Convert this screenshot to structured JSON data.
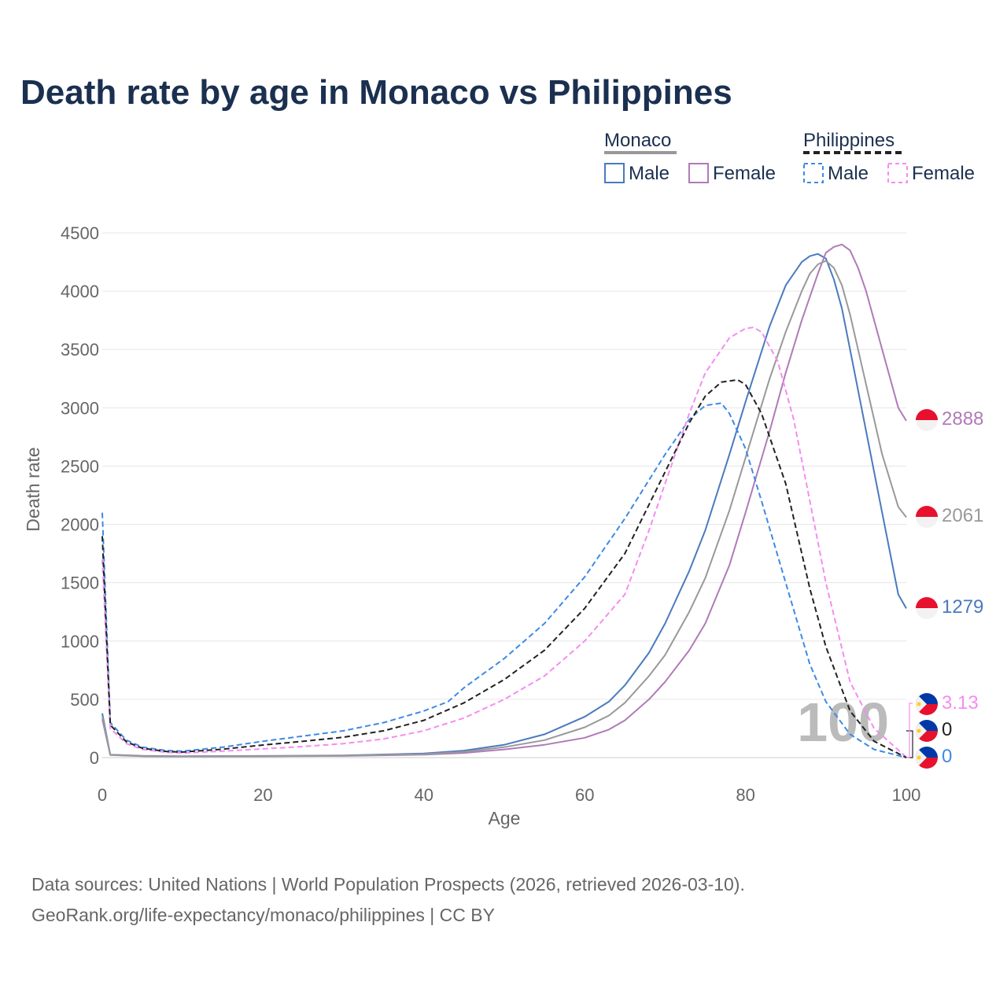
{
  "colors": {
    "monaco_male": "#4a7abf",
    "monaco_female": "#b07ab8",
    "monaco_total": "#999999",
    "philippines_male": "#3d8ae6",
    "philippines_female": "#f58cf0",
    "philippines_total": "#222222",
    "title": "#1b3050",
    "grid": "#e6e6e6",
    "flag_red": "#e8112d",
    "flag_blue": "#0038a8",
    "flag_yellow": "#fcd116"
  },
  "legend": {
    "group1": "Monaco",
    "group2": "Philippines",
    "male": "Male",
    "female": "Female"
  },
  "end_labels": {
    "monaco_female": "2888",
    "monaco_total": "2061",
    "monaco_male": "1279",
    "philippines_female": "3.13",
    "philippines_total": "0",
    "philippines_male": "0"
  },
  "year_watermark": "100",
  "source": {
    "line1": "Data sources: United Nations | World Population Prospects (2026, retrieved 2026-03-10).",
    "line2": "GeoRank.org/life-expectancy/monaco/philippines | CC BY"
  },
  "chart_data": {
    "type": "line",
    "title": "Death rate by age in Monaco vs Philippines",
    "xlabel": "Age",
    "ylabel": "Death rate",
    "xlim": [
      0,
      100
    ],
    "ylim": [
      0,
      4500
    ],
    "xticks": [
      0,
      20,
      40,
      60,
      80,
      100
    ],
    "yticks": [
      0,
      500,
      1000,
      1500,
      2000,
      2500,
      3000,
      3500,
      4000,
      4500
    ],
    "series": [
      {
        "name": "Monaco Male",
        "key": "monaco_male",
        "dashed": false,
        "points": [
          [
            0,
            380
          ],
          [
            1,
            25
          ],
          [
            5,
            15
          ],
          [
            10,
            12
          ],
          [
            20,
            14
          ],
          [
            30,
            18
          ],
          [
            40,
            35
          ],
          [
            45,
            60
          ],
          [
            50,
            110
          ],
          [
            55,
            200
          ],
          [
            60,
            350
          ],
          [
            63,
            480
          ],
          [
            65,
            620
          ],
          [
            68,
            900
          ],
          [
            70,
            1150
          ],
          [
            73,
            1600
          ],
          [
            75,
            1950
          ],
          [
            78,
            2600
          ],
          [
            80,
            3050
          ],
          [
            83,
            3700
          ],
          [
            85,
            4050
          ],
          [
            87,
            4250
          ],
          [
            88,
            4300
          ],
          [
            89,
            4320
          ],
          [
            90,
            4280
          ],
          [
            91,
            4100
          ],
          [
            92,
            3850
          ],
          [
            93,
            3500
          ],
          [
            95,
            2800
          ],
          [
            97,
            2100
          ],
          [
            99,
            1400
          ],
          [
            100,
            1279
          ]
        ]
      },
      {
        "name": "Monaco Female",
        "key": "monaco_female",
        "dashed": false,
        "points": [
          [
            0,
            330
          ],
          [
            1,
            22
          ],
          [
            5,
            12
          ],
          [
            10,
            10
          ],
          [
            20,
            11
          ],
          [
            30,
            14
          ],
          [
            40,
            25
          ],
          [
            45,
            40
          ],
          [
            50,
            70
          ],
          [
            55,
            110
          ],
          [
            60,
            170
          ],
          [
            63,
            240
          ],
          [
            65,
            320
          ],
          [
            68,
            500
          ],
          [
            70,
            650
          ],
          [
            73,
            920
          ],
          [
            75,
            1150
          ],
          [
            78,
            1650
          ],
          [
            80,
            2100
          ],
          [
            83,
            2800
          ],
          [
            85,
            3300
          ],
          [
            87,
            3750
          ],
          [
            89,
            4150
          ],
          [
            90,
            4330
          ],
          [
            91,
            4380
          ],
          [
            92,
            4400
          ],
          [
            93,
            4350
          ],
          [
            94,
            4200
          ],
          [
            95,
            4000
          ],
          [
            97,
            3500
          ],
          [
            99,
            3000
          ],
          [
            100,
            2888
          ]
        ]
      },
      {
        "name": "Monaco Total",
        "key": "monaco_total",
        "dashed": false,
        "points": [
          [
            0,
            355
          ],
          [
            1,
            24
          ],
          [
            5,
            13
          ],
          [
            10,
            11
          ],
          [
            20,
            12
          ],
          [
            30,
            16
          ],
          [
            40,
            30
          ],
          [
            45,
            50
          ],
          [
            50,
            90
          ],
          [
            55,
            150
          ],
          [
            60,
            260
          ],
          [
            63,
            360
          ],
          [
            65,
            470
          ],
          [
            68,
            700
          ],
          [
            70,
            880
          ],
          [
            73,
            1250
          ],
          [
            75,
            1540
          ],
          [
            78,
            2120
          ],
          [
            80,
            2570
          ],
          [
            83,
            3250
          ],
          [
            85,
            3650
          ],
          [
            87,
            4000
          ],
          [
            88,
            4150
          ],
          [
            89,
            4230
          ],
          [
            90,
            4260
          ],
          [
            91,
            4200
          ],
          [
            92,
            4050
          ],
          [
            93,
            3800
          ],
          [
            95,
            3200
          ],
          [
            97,
            2600
          ],
          [
            99,
            2150
          ],
          [
            100,
            2061
          ]
        ]
      },
      {
        "name": "Philippines Male",
        "key": "philippines_male",
        "dashed": true,
        "points": [
          [
            0,
            2100
          ],
          [
            1,
            300
          ],
          [
            3,
            150
          ],
          [
            5,
            90
          ],
          [
            8,
            60
          ],
          [
            10,
            55
          ],
          [
            15,
            90
          ],
          [
            20,
            140
          ],
          [
            25,
            185
          ],
          [
            30,
            230
          ],
          [
            35,
            300
          ],
          [
            40,
            400
          ],
          [
            43,
            480
          ],
          [
            45,
            600
          ],
          [
            50,
            850
          ],
          [
            55,
            1150
          ],
          [
            60,
            1550
          ],
          [
            65,
            2050
          ],
          [
            70,
            2600
          ],
          [
            73,
            2900
          ],
          [
            75,
            3020
          ],
          [
            77,
            3040
          ],
          [
            78,
            2950
          ],
          [
            80,
            2650
          ],
          [
            82,
            2200
          ],
          [
            85,
            1500
          ],
          [
            88,
            800
          ],
          [
            90,
            480
          ],
          [
            93,
            200
          ],
          [
            96,
            70
          ],
          [
            100,
            0
          ]
        ]
      },
      {
        "name": "Philippines Female",
        "key": "philippines_female",
        "dashed": true,
        "points": [
          [
            0,
            1700
          ],
          [
            1,
            250
          ],
          [
            3,
            120
          ],
          [
            5,
            70
          ],
          [
            8,
            45
          ],
          [
            10,
            40
          ],
          [
            15,
            55
          ],
          [
            20,
            75
          ],
          [
            25,
            95
          ],
          [
            30,
            120
          ],
          [
            35,
            160
          ],
          [
            40,
            230
          ],
          [
            45,
            340
          ],
          [
            50,
            500
          ],
          [
            55,
            700
          ],
          [
            60,
            1000
          ],
          [
            65,
            1400
          ],
          [
            68,
            1950
          ],
          [
            70,
            2350
          ],
          [
            73,
            2950
          ],
          [
            75,
            3300
          ],
          [
            78,
            3600
          ],
          [
            80,
            3680
          ],
          [
            81,
            3690
          ],
          [
            82,
            3650
          ],
          [
            84,
            3400
          ],
          [
            86,
            2900
          ],
          [
            88,
            2200
          ],
          [
            90,
            1500
          ],
          [
            93,
            650
          ],
          [
            96,
            250
          ],
          [
            100,
            3.13
          ]
        ]
      },
      {
        "name": "Philippines Total",
        "key": "philippines_total",
        "dashed": true,
        "points": [
          [
            0,
            1900
          ],
          [
            1,
            280
          ],
          [
            3,
            135
          ],
          [
            5,
            80
          ],
          [
            8,
            52
          ],
          [
            10,
            48
          ],
          [
            15,
            72
          ],
          [
            20,
            108
          ],
          [
            25,
            140
          ],
          [
            30,
            175
          ],
          [
            35,
            230
          ],
          [
            40,
            320
          ],
          [
            45,
            470
          ],
          [
            50,
            670
          ],
          [
            55,
            920
          ],
          [
            60,
            1280
          ],
          [
            65,
            1750
          ],
          [
            70,
            2450
          ],
          [
            73,
            2870
          ],
          [
            75,
            3100
          ],
          [
            77,
            3220
          ],
          [
            79,
            3240
          ],
          [
            80,
            3200
          ],
          [
            82,
            2950
          ],
          [
            85,
            2350
          ],
          [
            88,
            1450
          ],
          [
            90,
            950
          ],
          [
            93,
            400
          ],
          [
            96,
            140
          ],
          [
            100,
            0
          ]
        ]
      }
    ]
  }
}
